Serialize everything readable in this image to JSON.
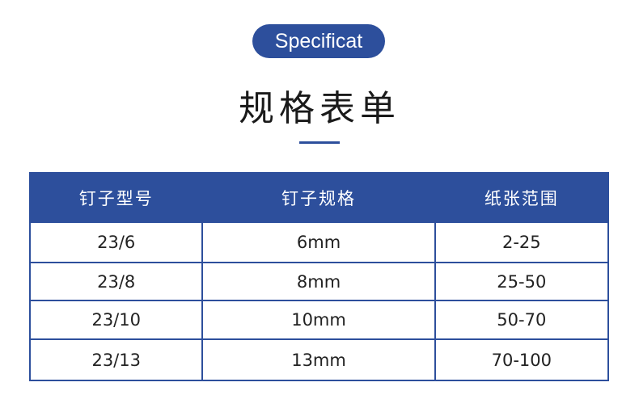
{
  "badge": "Specificat",
  "title": "规格表单",
  "accent": "#2d4f9c",
  "table": {
    "headers": [
      "钉子型号",
      "钉子规格",
      "纸张范围"
    ],
    "rows": [
      [
        "23/6",
        "6mm",
        "2-25"
      ],
      [
        "23/8",
        "8mm",
        "25-50"
      ],
      [
        "23/10",
        "10mm",
        "50-70"
      ],
      [
        "23/13",
        "13mm",
        "70-100"
      ]
    ]
  }
}
